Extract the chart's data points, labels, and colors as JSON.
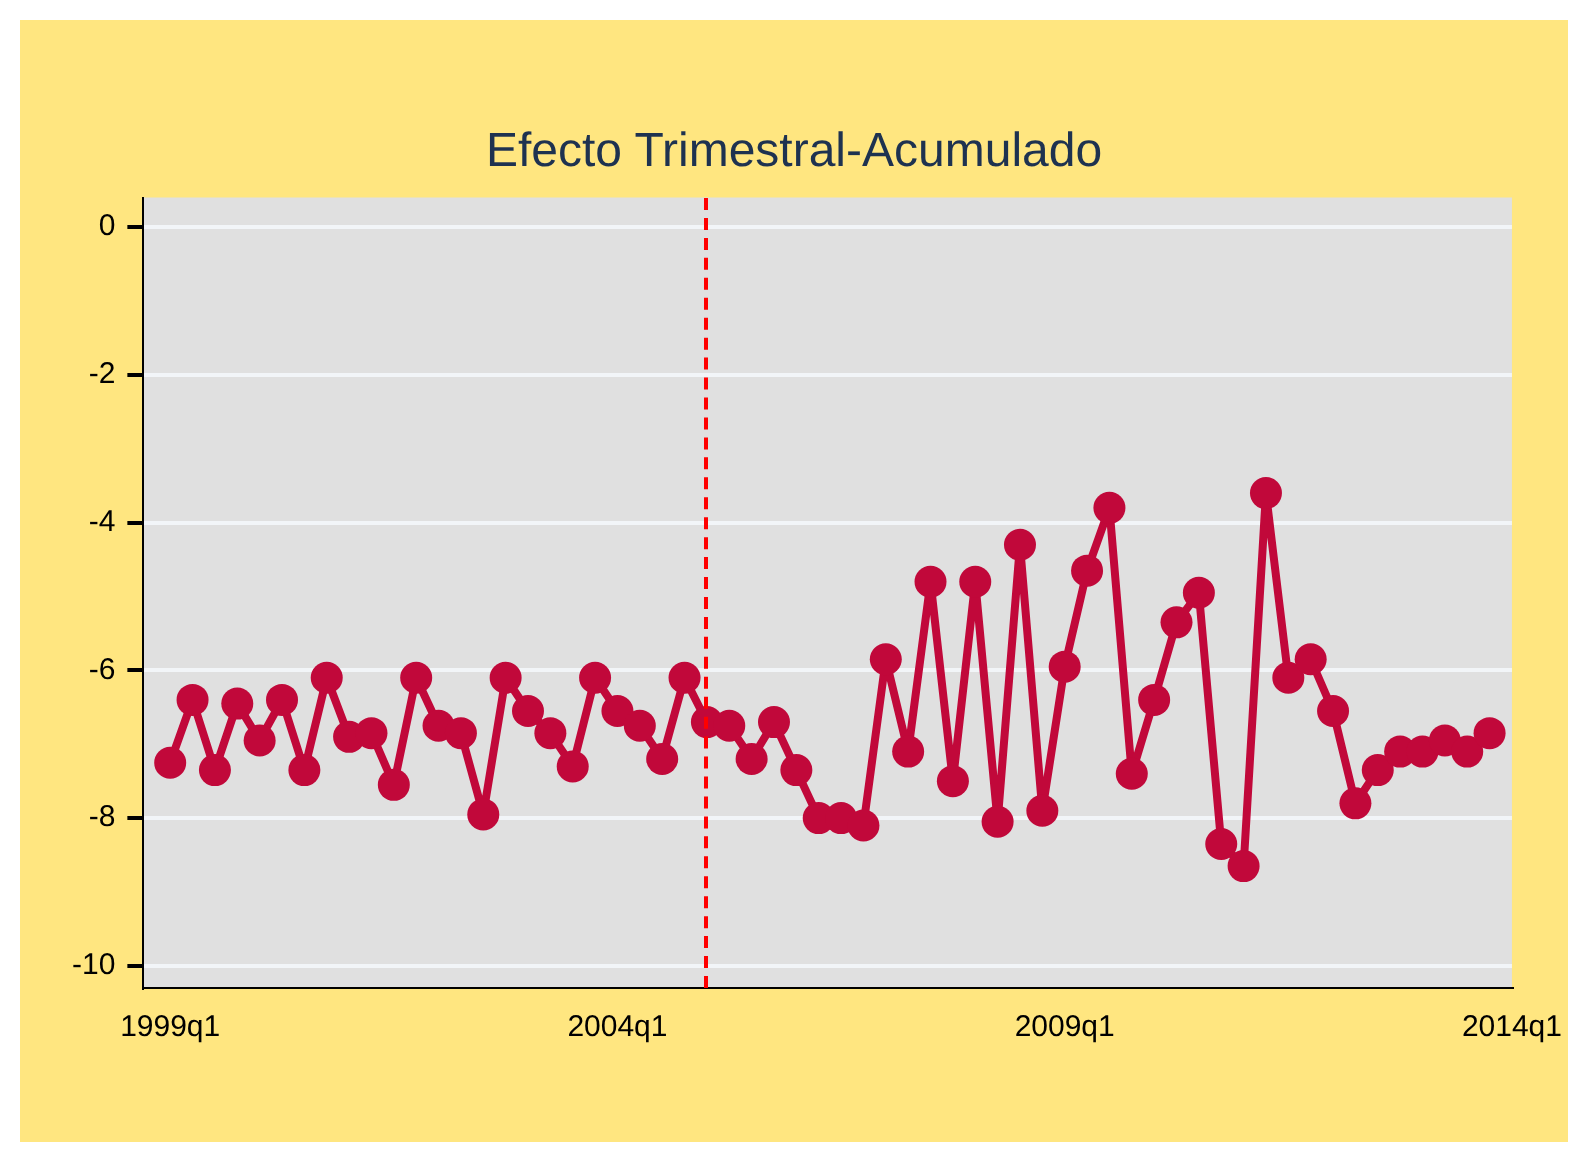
{
  "chart_data": {
    "type": "line",
    "title": "Efecto Trimestral-Acumulado",
    "categories": [
      "1999q1",
      null,
      null,
      null,
      null,
      null,
      null,
      null,
      null,
      null,
      null,
      null,
      null,
      null,
      null,
      null,
      null,
      null,
      null,
      null,
      "2004q1",
      null,
      null,
      null,
      null,
      null,
      null,
      null,
      null,
      null,
      null,
      null,
      null,
      null,
      null,
      null,
      null,
      null,
      null,
      null,
      "2009q1",
      null,
      null,
      null,
      null,
      null,
      null,
      null,
      null,
      null,
      null,
      null,
      null,
      null,
      null,
      null,
      null,
      null,
      null,
      null,
      "2014q1"
    ],
    "series": [
      {
        "color": "#c1083a",
        "values": [
          -7.25,
          -6.4,
          -7.35,
          -6.45,
          -6.95,
          -6.4,
          -7.35,
          -6.1,
          -6.9,
          -6.85,
          -7.55,
          -6.1,
          -6.75,
          -6.85,
          -7.95,
          -6.1,
          -6.55,
          -6.85,
          -7.3,
          -6.1,
          -6.55,
          -6.75,
          -7.2,
          -6.1,
          -6.7,
          -6.75,
          -7.2,
          -6.7,
          -7.35,
          -8.0,
          -8.0,
          -8.1,
          -5.85,
          -7.1,
          -4.8,
          -7.5,
          -4.8,
          -8.05,
          -4.3,
          -7.9,
          -5.95,
          -4.65,
          -3.8,
          -7.4,
          -6.4,
          -5.35,
          -4.95,
          -8.35,
          -8.65,
          -3.6,
          -6.1,
          -5.85,
          -6.55,
          -7.8,
          -7.35,
          -7.1,
          -7.1,
          -6.95,
          -7.1,
          -6.85,
          null
        ]
      }
    ],
    "ylim": [
      -10.3,
      0.4
    ],
    "yticks": [
      0,
      -2,
      -4,
      -6,
      -8,
      -10
    ],
    "grid": "y",
    "legend": false,
    "marker": "circle",
    "line_style": "solid"
  }
}
